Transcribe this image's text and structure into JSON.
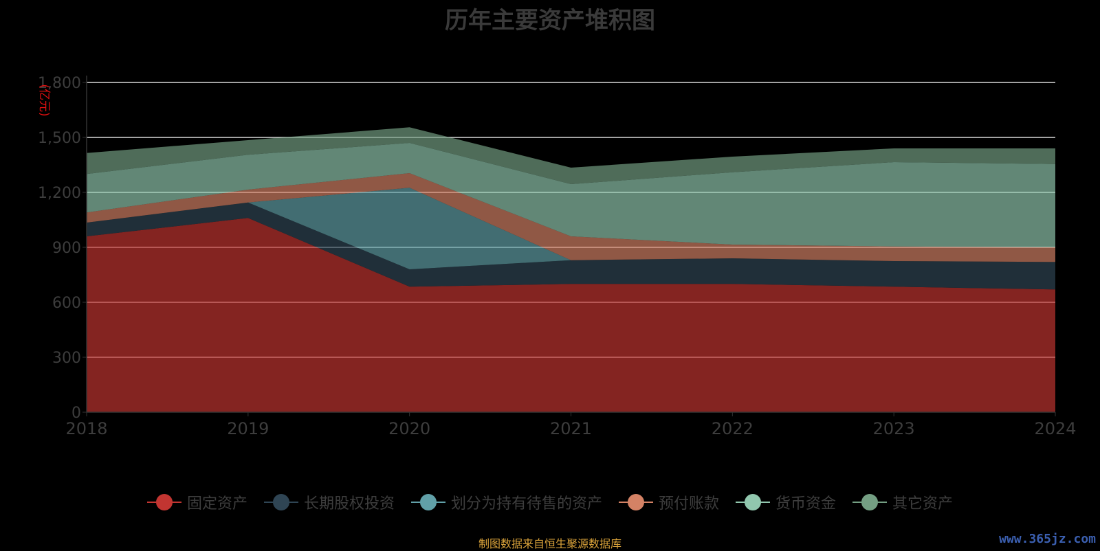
{
  "title": "历年主要资产堆积图",
  "source_note": "制图数据来自恒生聚源数据库",
  "watermark": "www.365jz.com",
  "chart_data": {
    "type": "area",
    "stacked": true,
    "title": "历年主要资产堆积图",
    "ylabel": "(亿元)",
    "x": [
      "2018",
      "2019",
      "2020",
      "2021",
      "2022",
      "2023",
      "2024"
    ],
    "ylim": [
      0,
      1800
    ],
    "yticks": [
      0,
      300,
      600,
      900,
      1200,
      1500,
      1800
    ],
    "ytick_labels": [
      "0",
      "300",
      "600",
      "900",
      "1,200",
      "1,500",
      "1,800"
    ],
    "grid": true,
    "legend_position": "bottom",
    "series": [
      {
        "name": "固定资产",
        "color": "#c23531",
        "values": [
          960,
          1060,
          685,
          700,
          700,
          685,
          670
        ]
      },
      {
        "name": "长期股权投资",
        "color": "#2f4554",
        "values": [
          75,
          85,
          95,
          130,
          140,
          140,
          150
        ]
      },
      {
        "name": "划分为持有待售的资产",
        "color": "#61a0a8",
        "values": [
          0,
          0,
          445,
          0,
          0,
          0,
          0
        ]
      },
      {
        "name": "预付账款",
        "color": "#d48265",
        "values": [
          55,
          70,
          80,
          130,
          75,
          80,
          80
        ]
      },
      {
        "name": "货币资金",
        "color": "#91c7ae",
        "values": [
          210,
          190,
          165,
          285,
          395,
          460,
          455
        ]
      },
      {
        "name": "其它资产",
        "color": "#749f83",
        "values": [
          115,
          80,
          85,
          90,
          85,
          75,
          85
        ]
      }
    ]
  }
}
